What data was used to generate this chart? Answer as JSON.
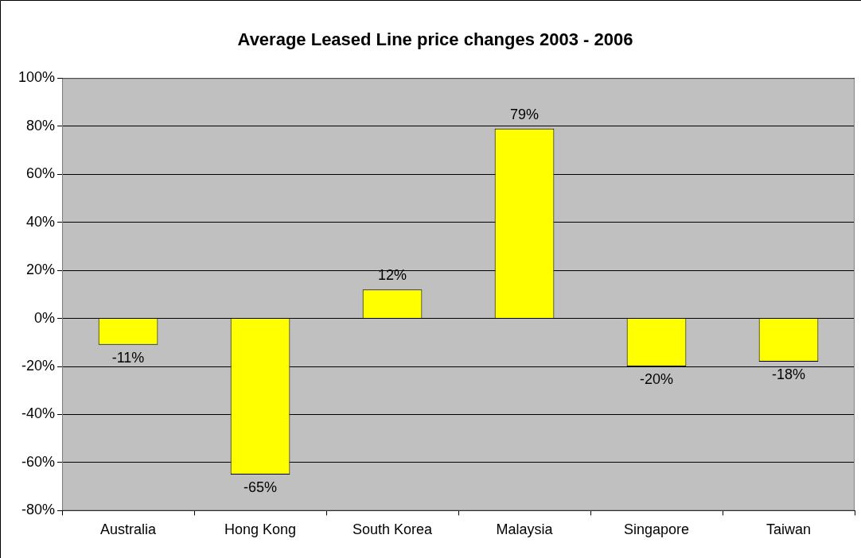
{
  "chart_data": {
    "type": "bar",
    "title": "Average Leased Line price changes 2003 - 2006",
    "categories": [
      "Australia",
      "Hong Kong",
      "South Korea",
      "Malaysia",
      "Singapore",
      "Taiwan"
    ],
    "values": [
      -11,
      -65,
      12,
      79,
      -20,
      -18
    ],
    "value_labels": [
      "-11%",
      "-65%",
      "12%",
      "79%",
      "-20%",
      "-18%"
    ],
    "color": "#ffff00",
    "ylim": [
      -80,
      100
    ],
    "yticks": [
      {
        "value": -80,
        "label": "-80%"
      },
      {
        "value": -60,
        "label": "-60%"
      },
      {
        "value": -40,
        "label": "-40%"
      },
      {
        "value": -20,
        "label": "-20%"
      },
      {
        "value": 0,
        "label": "0%"
      },
      {
        "value": 20,
        "label": "20%"
      },
      {
        "value": 40,
        "label": "40%"
      },
      {
        "value": 60,
        "label": "60%"
      },
      {
        "value": 80,
        "label": "80%"
      },
      {
        "value": 100,
        "label": "100%"
      }
    ],
    "grid": "y",
    "legend": false
  }
}
